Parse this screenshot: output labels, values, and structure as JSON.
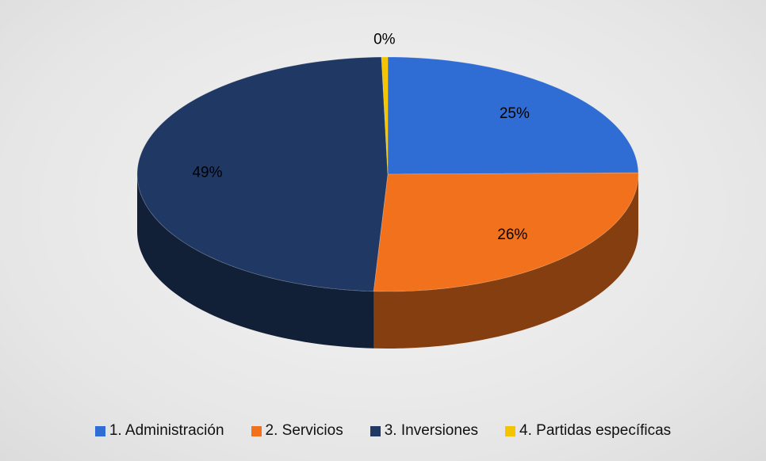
{
  "chart_data": {
    "type": "pie3d",
    "categories": [
      "1. Administración",
      "2. Servicios",
      "3. Inversiones",
      "4. Partidas específicas"
    ],
    "values": [
      24.8,
      26.1,
      48.7,
      0.4
    ],
    "value_labels": [
      "25%",
      "26%",
      "49%",
      "0%"
    ],
    "colors": [
      "#2f6cd4",
      "#f2711c",
      "#1f3864",
      "#f5c400"
    ],
    "legend": "bottom"
  }
}
